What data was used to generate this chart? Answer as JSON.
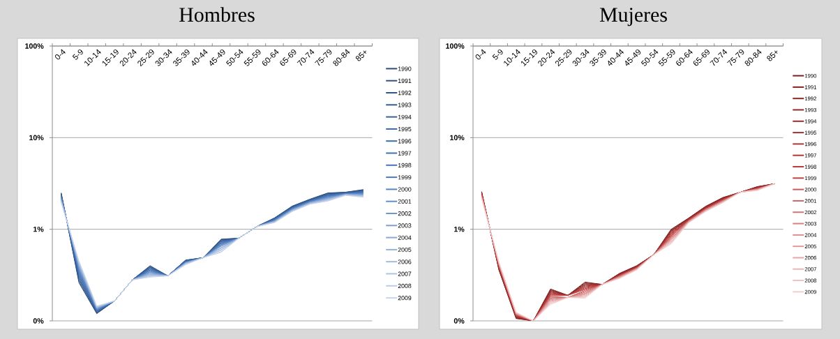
{
  "chart_data": [
    {
      "type": "line",
      "title": "Hombres",
      "log": "y",
      "grid": "y",
      "legend": "right",
      "marker": "none",
      "categories": [
        "0-4",
        "5-9",
        "10-14",
        "15-19",
        "20-24",
        "25-29",
        "30-34",
        "35-39",
        "40-44",
        "45-49",
        "50-54",
        "55-59",
        "60-64",
        "65-69",
        "70-74",
        "75-79",
        "80-84",
        "85+"
      ],
      "ylim": [
        0.1,
        100
      ],
      "yticks": [
        {
          "value": 0.1,
          "label": "0%"
        },
        {
          "value": 1,
          "label": "1%"
        },
        {
          "value": 10,
          "label": "10%"
        },
        {
          "value": 100,
          "label": "100%"
        }
      ],
      "series": [
        {
          "name": "1990",
          "color": "#2a4b7c",
          "values": [
            2.5,
            0.26,
            0.12,
            0.165,
            0.28,
            0.4,
            0.31,
            0.46,
            0.49,
            0.78,
            0.8,
            1.07,
            1.33,
            1.79,
            2.13,
            2.49,
            2.54,
            2.71
          ]
        },
        {
          "name": "1991",
          "color": "#2e5084",
          "values": [
            2.47,
            0.27,
            0.121,
            0.165,
            0.28,
            0.395,
            0.31,
            0.46,
            0.49,
            0.77,
            0.8,
            1.07,
            1.32,
            1.78,
            2.12,
            2.47,
            2.53,
            2.69
          ]
        },
        {
          "name": "1992",
          "color": "#31568b",
          "values": [
            2.44,
            0.28,
            0.123,
            0.165,
            0.28,
            0.389,
            0.31,
            0.455,
            0.49,
            0.76,
            0.8,
            1.07,
            1.32,
            1.77,
            2.1,
            2.44,
            2.52,
            2.66
          ]
        },
        {
          "name": "1993",
          "color": "#355b93",
          "values": [
            2.41,
            0.29,
            0.124,
            0.165,
            0.28,
            0.384,
            0.31,
            0.455,
            0.49,
            0.75,
            0.8,
            1.07,
            1.31,
            1.75,
            2.09,
            2.42,
            2.51,
            2.64
          ]
        },
        {
          "name": "1994",
          "color": "#38609a",
          "values": [
            2.38,
            0.3,
            0.125,
            0.165,
            0.28,
            0.379,
            0.31,
            0.45,
            0.49,
            0.74,
            0.8,
            1.07,
            1.3,
            1.74,
            2.08,
            2.39,
            2.5,
            2.61
          ]
        },
        {
          "name": "1995",
          "color": "#3c66a2",
          "values": [
            2.35,
            0.31,
            0.127,
            0.165,
            0.28,
            0.374,
            0.31,
            0.45,
            0.49,
            0.73,
            0.8,
            1.07,
            1.29,
            1.73,
            2.06,
            2.37,
            2.49,
            2.59
          ]
        },
        {
          "name": "1996",
          "color": "#3f6ba9",
          "values": [
            2.33,
            0.32,
            0.128,
            0.165,
            0.28,
            0.368,
            0.31,
            0.445,
            0.49,
            0.72,
            0.8,
            1.07,
            1.28,
            1.72,
            2.05,
            2.34,
            2.48,
            2.56
          ]
        },
        {
          "name": "1997",
          "color": "#4370b1",
          "values": [
            2.3,
            0.33,
            0.129,
            0.165,
            0.28,
            0.363,
            0.31,
            0.445,
            0.49,
            0.71,
            0.8,
            1.07,
            1.28,
            1.71,
            2.04,
            2.32,
            2.47,
            2.54
          ]
        },
        {
          "name": "1998",
          "color": "#4676b8",
          "values": [
            2.27,
            0.34,
            0.131,
            0.165,
            0.28,
            0.358,
            0.31,
            0.44,
            0.49,
            0.7,
            0.8,
            1.07,
            1.27,
            1.69,
            2.02,
            2.3,
            2.46,
            2.51
          ]
        },
        {
          "name": "1999",
          "color": "#4a7bc0",
          "values": [
            2.24,
            0.35,
            0.132,
            0.165,
            0.28,
            0.353,
            0.31,
            0.44,
            0.49,
            0.69,
            0.8,
            1.07,
            1.26,
            1.68,
            2.01,
            2.27,
            2.45,
            2.49
          ]
        },
        {
          "name": "2000",
          "color": "#5684c5",
          "values": [
            2.21,
            0.36,
            0.133,
            0.165,
            0.28,
            0.347,
            0.31,
            0.435,
            0.49,
            0.68,
            0.8,
            1.07,
            1.25,
            1.67,
            2.0,
            2.25,
            2.44,
            2.46
          ]
        },
        {
          "name": "2001",
          "color": "#638dc9",
          "values": [
            2.18,
            0.37,
            0.134,
            0.165,
            0.28,
            0.342,
            0.31,
            0.435,
            0.49,
            0.67,
            0.8,
            1.07,
            1.24,
            1.66,
            1.98,
            2.22,
            2.43,
            2.44
          ]
        },
        {
          "name": "2002",
          "color": "#6f96cd",
          "values": [
            2.15,
            0.38,
            0.136,
            0.165,
            0.28,
            0.337,
            0.31,
            0.43,
            0.49,
            0.66,
            0.8,
            1.07,
            1.23,
            1.65,
            1.97,
            2.2,
            2.42,
            2.41
          ]
        },
        {
          "name": "2003",
          "color": "#7c9fd1",
          "values": [
            2.12,
            0.39,
            0.137,
            0.165,
            0.28,
            0.332,
            0.31,
            0.43,
            0.49,
            0.65,
            0.8,
            1.07,
            1.23,
            1.63,
            1.96,
            2.18,
            2.41,
            2.39
          ]
        },
        {
          "name": "2004",
          "color": "#89a8d5",
          "values": [
            2.1,
            0.4,
            0.138,
            0.165,
            0.28,
            0.326,
            0.31,
            0.425,
            0.49,
            0.63,
            0.8,
            1.07,
            1.22,
            1.62,
            1.94,
            2.15,
            2.4,
            2.36
          ]
        },
        {
          "name": "2005",
          "color": "#95b1da",
          "values": [
            2.07,
            0.41,
            0.14,
            0.165,
            0.28,
            0.321,
            0.31,
            0.425,
            0.49,
            0.62,
            0.8,
            1.07,
            1.21,
            1.61,
            1.93,
            2.13,
            2.39,
            2.34
          ]
        },
        {
          "name": "2006",
          "color": "#a2bade",
          "values": [
            2.04,
            0.42,
            0.141,
            0.165,
            0.28,
            0.316,
            0.31,
            0.42,
            0.49,
            0.6,
            0.8,
            1.07,
            1.2,
            1.6,
            1.92,
            2.1,
            2.38,
            2.31
          ]
        },
        {
          "name": "2007",
          "color": "#afc3e2",
          "values": [
            2.01,
            0.43,
            0.142,
            0.165,
            0.28,
            0.311,
            0.31,
            0.42,
            0.49,
            0.59,
            0.8,
            1.07,
            1.19,
            1.59,
            1.9,
            2.08,
            2.37,
            2.29
          ]
        },
        {
          "name": "2008",
          "color": "#bbcce6",
          "values": [
            1.98,
            0.44,
            0.144,
            0.165,
            0.28,
            0.305,
            0.31,
            0.415,
            0.49,
            0.57,
            0.8,
            1.07,
            1.19,
            1.57,
            1.89,
            2.05,
            2.36,
            2.26
          ]
        },
        {
          "name": "2009",
          "color": "#c8d5ea",
          "values": [
            1.95,
            0.45,
            0.145,
            0.165,
            0.28,
            0.3,
            0.31,
            0.41,
            0.49,
            0.56,
            0.8,
            1.07,
            1.18,
            1.56,
            1.88,
            2.03,
            2.34,
            2.24
          ]
        }
      ]
    },
    {
      "type": "line",
      "title": "Mujeres",
      "log": "y",
      "grid": "y",
      "legend": "right",
      "marker": "none",
      "categories": [
        "0-4",
        "5-9",
        "10-14",
        "15-19",
        "20-24",
        "25-29",
        "30-34",
        "35-39",
        "40-44",
        "45-49",
        "50-54",
        "55-59",
        "60-64",
        "65-69",
        "70-74",
        "75-79",
        "80-84",
        "85+"
      ],
      "ylim": [
        0.1,
        100
      ],
      "yticks": [
        {
          "value": 0.1,
          "label": "0%"
        },
        {
          "value": 1,
          "label": "1%"
        },
        {
          "value": 10,
          "label": "10%"
        },
        {
          "value": 100,
          "label": "100%"
        }
      ],
      "series": [
        {
          "name": "1990",
          "color": "#7a1e1e",
          "values": [
            2.58,
            0.36,
            0.106,
            0.1,
            0.223,
            0.19,
            0.265,
            0.25,
            0.33,
            0.4,
            0.53,
            1.0,
            1.32,
            1.78,
            2.22,
            2.53,
            2.92,
            3.14
          ]
        },
        {
          "name": "1991",
          "color": "#822222",
          "values": [
            2.56,
            0.364,
            0.107,
            0.1,
            0.219,
            0.19,
            0.26,
            0.25,
            0.328,
            0.398,
            0.53,
            0.98,
            1.31,
            1.77,
            2.21,
            2.53,
            2.91,
            3.14
          ]
        },
        {
          "name": "1992",
          "color": "#8a2626",
          "values": [
            2.54,
            0.368,
            0.108,
            0.1,
            0.215,
            0.19,
            0.255,
            0.25,
            0.326,
            0.396,
            0.53,
            0.97,
            1.3,
            1.76,
            2.19,
            2.53,
            2.89,
            3.14
          ]
        },
        {
          "name": "1993",
          "color": "#912929",
          "values": [
            2.52,
            0.373,
            0.109,
            0.1,
            0.211,
            0.19,
            0.25,
            0.25,
            0.324,
            0.394,
            0.53,
            0.95,
            1.3,
            1.74,
            2.18,
            2.53,
            2.88,
            3.14
          ]
        },
        {
          "name": "1994",
          "color": "#992d2d",
          "values": [
            2.5,
            0.377,
            0.11,
            0.1,
            0.207,
            0.19,
            0.245,
            0.25,
            0.322,
            0.392,
            0.53,
            0.94,
            1.29,
            1.73,
            2.16,
            2.53,
            2.86,
            3.14
          ]
        },
        {
          "name": "1995",
          "color": "#a13131",
          "values": [
            2.48,
            0.381,
            0.111,
            0.1,
            0.203,
            0.19,
            0.24,
            0.25,
            0.319,
            0.389,
            0.53,
            0.92,
            1.28,
            1.72,
            2.15,
            2.53,
            2.85,
            3.14
          ]
        },
        {
          "name": "1996",
          "color": "#a93535",
          "values": [
            2.45,
            0.385,
            0.112,
            0.1,
            0.199,
            0.19,
            0.235,
            0.25,
            0.317,
            0.387,
            0.53,
            0.9,
            1.27,
            1.71,
            2.13,
            2.53,
            2.83,
            3.14
          ]
        },
        {
          "name": "1997",
          "color": "#b03838",
          "values": [
            2.43,
            0.389,
            0.113,
            0.1,
            0.196,
            0.19,
            0.23,
            0.25,
            0.315,
            0.385,
            0.53,
            0.89,
            1.26,
            1.7,
            2.12,
            2.53,
            2.82,
            3.14
          ]
        },
        {
          "name": "1998",
          "color": "#b83c3c",
          "values": [
            2.41,
            0.394,
            0.114,
            0.1,
            0.192,
            0.19,
            0.225,
            0.25,
            0.313,
            0.383,
            0.53,
            0.87,
            1.26,
            1.69,
            2.11,
            2.53,
            2.81,
            3.14
          ]
        },
        {
          "name": "1999",
          "color": "#c04040",
          "values": [
            2.39,
            0.398,
            0.115,
            0.1,
            0.188,
            0.19,
            0.22,
            0.25,
            0.311,
            0.381,
            0.53,
            0.85,
            1.25,
            1.68,
            2.09,
            2.53,
            2.79,
            3.14
          ]
        },
        {
          "name": "2000",
          "color": "#c85a5a",
          "values": [
            2.37,
            0.402,
            0.116,
            0.1,
            0.185,
            0.18,
            0.215,
            0.25,
            0.309,
            0.379,
            0.53,
            0.84,
            1.24,
            1.66,
            2.08,
            2.53,
            2.78,
            3.14
          ]
        },
        {
          "name": "2001",
          "color": "#cd6767",
          "values": [
            2.35,
            0.406,
            0.117,
            0.1,
            0.181,
            0.18,
            0.21,
            0.25,
            0.307,
            0.377,
            0.53,
            0.82,
            1.23,
            1.65,
            2.06,
            2.53,
            2.76,
            3.14
          ]
        },
        {
          "name": "2002",
          "color": "#d17474",
          "values": [
            2.33,
            0.411,
            0.118,
            0.1,
            0.177,
            0.18,
            0.205,
            0.25,
            0.305,
            0.375,
            0.53,
            0.8,
            1.22,
            1.64,
            2.05,
            2.53,
            2.75,
            3.14
          ]
        },
        {
          "name": "2003",
          "color": "#d68181",
          "values": [
            2.31,
            0.415,
            0.119,
            0.1,
            0.174,
            0.18,
            0.2,
            0.25,
            0.303,
            0.373,
            0.53,
            0.79,
            1.22,
            1.63,
            2.03,
            2.53,
            2.73,
            3.14
          ]
        },
        {
          "name": "2004",
          "color": "#db8e8e",
          "values": [
            2.29,
            0.419,
            0.12,
            0.1,
            0.17,
            0.18,
            0.197,
            0.25,
            0.301,
            0.371,
            0.53,
            0.77,
            1.21,
            1.62,
            2.02,
            2.53,
            2.72,
            3.14
          ]
        },
        {
          "name": "2005",
          "color": "#df9b9b",
          "values": [
            2.27,
            0.423,
            0.12,
            0.1,
            0.166,
            0.18,
            0.193,
            0.25,
            0.298,
            0.368,
            0.53,
            0.76,
            1.2,
            1.61,
            2.0,
            2.53,
            2.7,
            3.14
          ]
        },
        {
          "name": "2006",
          "color": "#e4a8a8",
          "values": [
            2.24,
            0.427,
            0.121,
            0.1,
            0.163,
            0.18,
            0.189,
            0.25,
            0.296,
            0.366,
            0.53,
            0.74,
            1.19,
            1.6,
            1.99,
            2.53,
            2.69,
            3.14
          ]
        },
        {
          "name": "2007",
          "color": "#e9b5b5",
          "values": [
            2.22,
            0.432,
            0.122,
            0.1,
            0.159,
            0.18,
            0.185,
            0.25,
            0.294,
            0.364,
            0.53,
            0.72,
            1.18,
            1.58,
            1.98,
            2.53,
            2.68,
            3.14
          ]
        },
        {
          "name": "2008",
          "color": "#edc2c2",
          "values": [
            2.2,
            0.436,
            0.123,
            0.1,
            0.155,
            0.18,
            0.181,
            0.25,
            0.292,
            0.362,
            0.53,
            0.71,
            1.18,
            1.57,
            1.96,
            2.53,
            2.66,
            3.14
          ]
        },
        {
          "name": "2009",
          "color": "#f2cfcf",
          "values": [
            2.16,
            0.44,
            0.124,
            0.1,
            0.151,
            0.18,
            0.177,
            0.25,
            0.29,
            0.36,
            0.53,
            0.69,
            1.17,
            1.56,
            1.95,
            2.53,
            2.65,
            3.14
          ]
        }
      ]
    }
  ]
}
